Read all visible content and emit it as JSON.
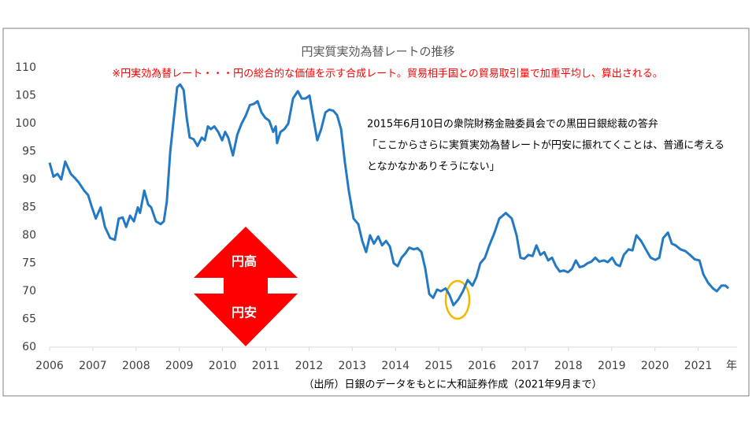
{
  "chart_data": {
    "type": "line",
    "title": "円実質実効為替レートの推移",
    "note": "※円実効為替レート・・・円の総合的な価値を示す合成レート。貿易相手国との貿易取引量で加重平均し、算出される。",
    "quote": [
      "2015年6月10日の衆院財務金融委員会での黒田日銀総裁の答弁",
      "「ここからさらに実質実効為替レートが円安に振れてくことは、普通に考える",
      "となかなかありそうにない」"
    ],
    "arrow_labels": [
      "円高",
      "円安"
    ],
    "xlabel": "年",
    "source": "（出所）日銀のデータをもとに大和証券作成（2021年9月まで）",
    "xlim": [
      2006,
      2021.9
    ],
    "xticks": [
      2006,
      2007,
      2008,
      2009,
      2010,
      2011,
      2012,
      2013,
      2014,
      2015,
      2016,
      2017,
      2018,
      2019,
      2020,
      2021
    ],
    "ylim": [
      60,
      110
    ],
    "yticks": [
      60,
      65,
      70,
      75,
      80,
      85,
      90,
      95,
      100,
      105,
      110
    ],
    "x": [
      2006.0,
      2006.09,
      2006.18,
      2006.27,
      2006.36,
      2006.49,
      2006.58,
      2006.67,
      2006.8,
      2006.89,
      2006.98,
      2007.07,
      2007.18,
      2007.28,
      2007.4,
      2007.51,
      2007.6,
      2007.69,
      2007.77,
      2007.86,
      2007.95,
      2008.04,
      2008.09,
      2008.19,
      2008.28,
      2008.35,
      2008.46,
      2008.57,
      2008.64,
      2008.71,
      2008.79,
      2008.86,
      2008.95,
      2009.02,
      2009.1,
      2009.17,
      2009.24,
      2009.33,
      2009.42,
      2009.52,
      2009.59,
      2009.66,
      2009.73,
      2009.81,
      2009.9,
      2009.99,
      2010.06,
      2010.13,
      2010.24,
      2010.34,
      2010.44,
      2010.54,
      2010.63,
      2010.72,
      2010.81,
      2010.9,
      2010.99,
      2011.08,
      2011.17,
      2011.23,
      2011.26,
      2011.34,
      2011.43,
      2011.52,
      2011.63,
      2011.74,
      2011.83,
      2011.92,
      2012.01,
      2012.1,
      2012.19,
      2012.28,
      2012.38,
      2012.47,
      2012.56,
      2012.65,
      2012.74,
      2012.83,
      2012.92,
      2013.03,
      2013.14,
      2013.23,
      2013.32,
      2013.41,
      2013.5,
      2013.6,
      2013.69,
      2013.78,
      2013.87,
      2013.96,
      2014.05,
      2014.14,
      2014.23,
      2014.32,
      2014.42,
      2014.51,
      2014.6,
      2014.69,
      2014.78,
      2014.87,
      2014.96,
      2015.05,
      2015.16,
      2015.25,
      2015.34,
      2015.45,
      2015.56,
      2015.67,
      2015.78,
      2015.87,
      2015.96,
      2016.07,
      2016.16,
      2016.29,
      2016.4,
      2016.55,
      2016.69,
      2016.8,
      2016.89,
      2016.98,
      2017.07,
      2017.17,
      2017.26,
      2017.35,
      2017.44,
      2017.53,
      2017.62,
      2017.71,
      2017.8,
      2017.89,
      2017.99,
      2018.08,
      2018.17,
      2018.26,
      2018.35,
      2018.44,
      2018.53,
      2018.62,
      2018.71,
      2018.82,
      2018.91,
      2019.01,
      2019.1,
      2019.19,
      2019.28,
      2019.39,
      2019.48,
      2019.57,
      2019.68,
      2019.79,
      2019.9,
      2020.01,
      2020.1,
      2020.19,
      2020.3,
      2020.39,
      2020.48,
      2020.59,
      2020.7,
      2020.81,
      2020.92,
      2021.03,
      2021.12,
      2021.23,
      2021.34,
      2021.43,
      2021.54,
      2021.63,
      2021.7
    ],
    "series": [
      {
        "name": "円実質実効為替レート",
        "color": "#2379c3",
        "values": [
          93,
          90.5,
          91,
          90,
          93.2,
          91,
          90.3,
          89.5,
          88,
          87.2,
          85,
          83,
          85,
          81.5,
          79.5,
          79.2,
          83,
          83.2,
          81.5,
          83.5,
          82.5,
          85,
          84,
          88,
          85.5,
          85,
          82.5,
          82,
          82.5,
          86,
          95,
          100,
          106.5,
          107,
          106,
          101,
          97.5,
          97.2,
          96,
          97.5,
          97,
          99.5,
          99,
          99.5,
          98.5,
          97,
          98.5,
          97.5,
          94.3,
          98,
          100,
          101.5,
          103.3,
          103.5,
          104,
          102,
          101,
          100.5,
          98.5,
          99.5,
          96.5,
          98.5,
          99,
          100,
          104.5,
          105.8,
          104.5,
          104.5,
          105,
          101,
          97,
          99,
          102,
          102.5,
          102.3,
          101.5,
          99,
          93,
          88,
          83,
          82,
          79,
          77,
          80,
          78.5,
          79.8,
          78.2,
          79,
          78,
          75,
          74.5,
          76,
          76.8,
          77.8,
          77.5,
          77.7,
          77,
          74,
          69.5,
          68.8,
          70.3,
          70,
          70.5,
          69.3,
          67.5,
          68.5,
          70,
          72,
          71,
          72.5,
          75,
          76,
          78,
          80.5,
          83,
          84,
          83,
          80,
          76,
          75.8,
          76.5,
          76.3,
          78.2,
          76.5,
          77,
          75.5,
          76,
          74.5,
          73.5,
          73.7,
          73.4,
          74,
          75.5,
          74.3,
          74.5,
          75,
          75.3,
          76,
          75.3,
          75.5,
          75.2,
          76,
          74.8,
          74.5,
          76.5,
          77.5,
          77.3,
          80,
          79,
          77.5,
          76,
          75.6,
          76,
          79.5,
          80.5,
          78.5,
          78.2,
          77.5,
          77.2,
          76.5,
          75.7,
          75.5,
          73,
          71.5,
          70.5,
          70,
          71,
          71,
          70.5
        ]
      }
    ]
  }
}
